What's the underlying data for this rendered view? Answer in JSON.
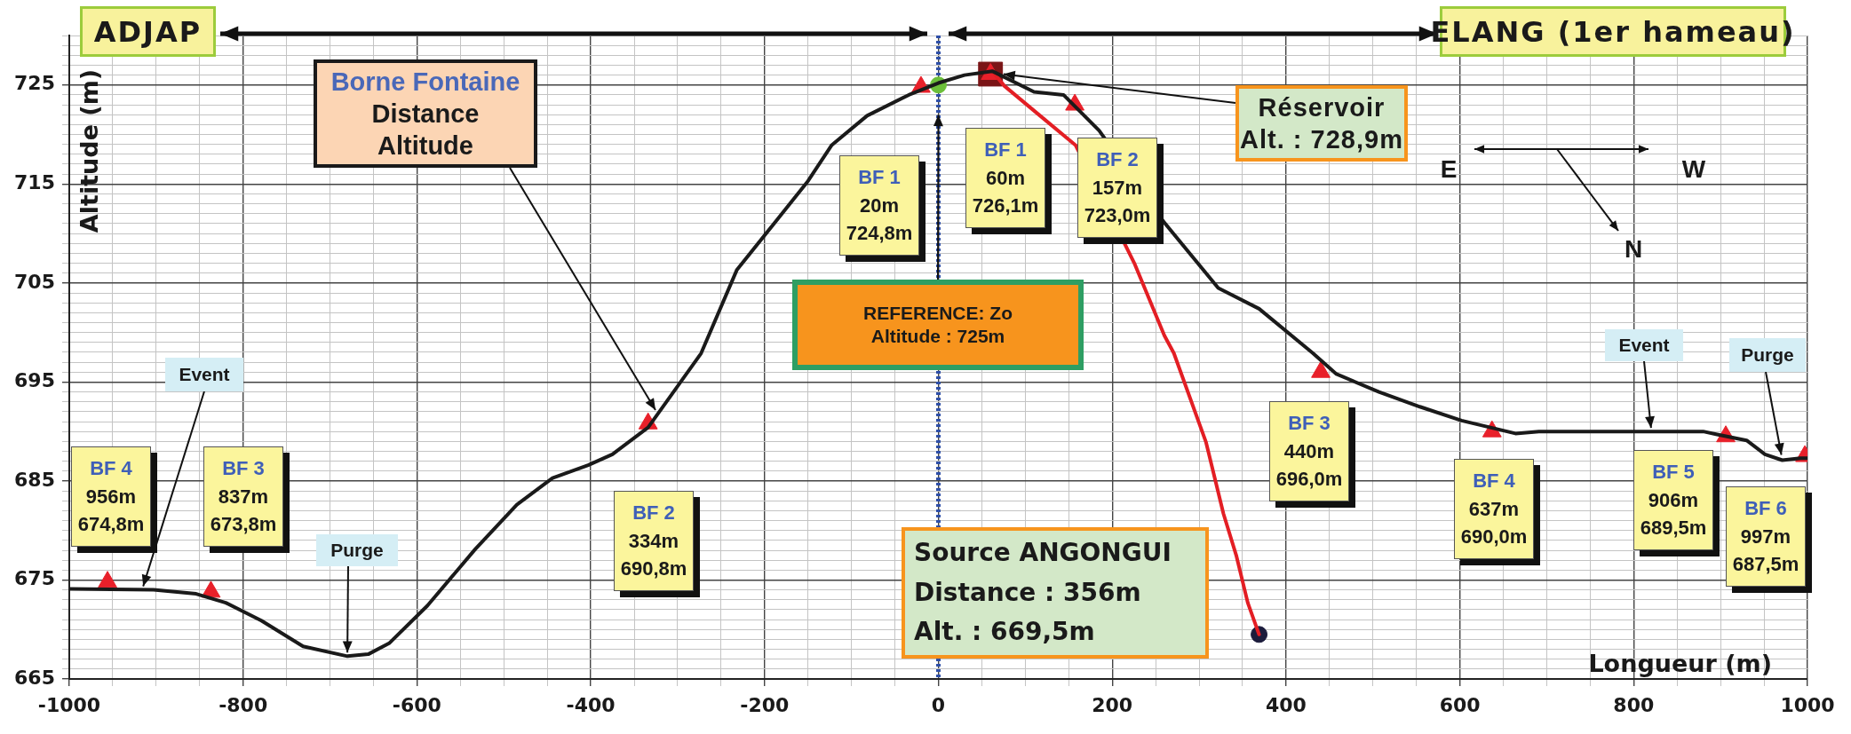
{
  "chart_data": {
    "type": "line",
    "xlabel": "Longueur (m)",
    "ylabel": "Altitude (m)",
    "xlim": [
      -1000,
      1000
    ],
    "xticks": [
      -1000,
      {
        "value": -950,
        "label": null
      },
      {
        "value": -900,
        "label": null
      },
      {
        "value": -850,
        "label": null
      },
      -800,
      {
        "value": -750,
        "label": null
      },
      {
        "value": -700,
        "label": null
      },
      {
        "value": -650,
        "label": null
      },
      -600,
      {
        "value": -550,
        "label": null
      },
      {
        "value": -500,
        "label": null
      },
      {
        "value": -450,
        "label": null
      },
      -400,
      {
        "value": -350,
        "label": null
      },
      {
        "value": -300,
        "label": null
      },
      {
        "value": -250,
        "label": null
      },
      -200,
      {
        "value": -150,
        "label": null
      },
      {
        "value": -100,
        "label": null
      },
      {
        "value": -50,
        "label": null
      },
      0,
      {
        "value": 50,
        "label": null
      },
      {
        "value": 100,
        "label": null
      },
      {
        "value": 150,
        "label": null
      },
      200,
      {
        "value": 250,
        "label": null
      },
      {
        "value": 300,
        "label": null
      },
      {
        "value": 350,
        "label": null
      },
      400,
      {
        "value": 450,
        "label": null
      },
      {
        "value": 500,
        "label": null
      },
      {
        "value": 550,
        "label": null
      },
      600,
      {
        "value": 650,
        "label": null
      },
      {
        "value": 700,
        "label": null
      },
      {
        "value": 750,
        "label": null
      },
      800,
      {
        "value": 850,
        "label": null
      },
      {
        "value": 900,
        "label": null
      },
      {
        "value": 950,
        "label": null
      },
      1000
    ],
    "ylim": [
      665,
      730
    ],
    "yticks": [
      665,
      {
        "value": 666,
        "label": null
      },
      {
        "value": 667,
        "label": null
      },
      {
        "value": 668,
        "label": null
      },
      {
        "value": 669,
        "label": null
      },
      {
        "value": 670,
        "label": null
      },
      {
        "value": 671,
        "label": null
      },
      {
        "value": 672,
        "label": null
      },
      {
        "value": 673,
        "label": null
      },
      {
        "value": 674,
        "label": null
      },
      675,
      {
        "value": 676,
        "label": null
      },
      {
        "value": 677,
        "label": null
      },
      {
        "value": 678,
        "label": null
      },
      {
        "value": 679,
        "label": null
      },
      {
        "value": 680,
        "label": null
      },
      {
        "value": 681,
        "label": null
      },
      {
        "value": 682,
        "label": null
      },
      {
        "value": 683,
        "label": null
      },
      {
        "value": 684,
        "label": null
      },
      685,
      {
        "value": 686,
        "label": null
      },
      {
        "value": 687,
        "label": null
      },
      {
        "value": 688,
        "label": null
      },
      {
        "value": 689,
        "label": null
      },
      {
        "value": 690,
        "label": null
      },
      {
        "value": 691,
        "label": null
      },
      {
        "value": 692,
        "label": null
      },
      {
        "value": 693,
        "label": null
      },
      {
        "value": 694,
        "label": null
      },
      695,
      {
        "value": 696,
        "label": null
      },
      {
        "value": 697,
        "label": null
      },
      {
        "value": 698,
        "label": null
      },
      {
        "value": 699,
        "label": null
      },
      {
        "value": 700,
        "label": null
      },
      {
        "value": 701,
        "label": null
      },
      {
        "value": 702,
        "label": null
      },
      {
        "value": 703,
        "label": null
      },
      {
        "value": 704,
        "label": null
      },
      705,
      {
        "value": 706,
        "label": null
      },
      {
        "value": 707,
        "label": null
      },
      {
        "value": 708,
        "label": null
      },
      {
        "value": 709,
        "label": null
      },
      {
        "value": 710,
        "label": null
      },
      {
        "value": 711,
        "label": null
      },
      {
        "value": 712,
        "label": null
      },
      {
        "value": 713,
        "label": null
      },
      {
        "value": 714,
        "label": null
      },
      715,
      {
        "value": 716,
        "label": null
      },
      {
        "value": 717,
        "label": null
      },
      {
        "value": 718,
        "label": null
      },
      {
        "value": 719,
        "label": null
      },
      {
        "value": 720,
        "label": null
      },
      {
        "value": 721,
        "label": null
      },
      {
        "value": 722,
        "label": null
      },
      {
        "value": 723,
        "label": null
      },
      {
        "value": 724,
        "label": null
      },
      725,
      {
        "value": 726,
        "label": null
      },
      {
        "value": 727,
        "label": null
      },
      {
        "value": 728,
        "label": null
      },
      {
        "value": 729,
        "label": null
      },
      {
        "value": 730,
        "label": null
      }
    ],
    "grid": true,
    "legend": false,
    "line_style": "solid",
    "ref_lines": [
      {
        "axis": "x",
        "value": 0,
        "color": "#2e4fa8",
        "line_style": "dotted"
      }
    ],
    "series": [
      {
        "color": "#1a1a1a",
        "marker": "none",
        "x": [
          -1000,
          -903,
          -854,
          -820,
          -779,
          -731,
          -680,
          -656,
          -632,
          -588,
          -533,
          -485,
          -444,
          -403,
          -375,
          -334,
          -273,
          -232,
          -191,
          -150,
          -123,
          -82,
          -34,
          0,
          30,
          62,
          110,
          144,
          185,
          260,
          322,
          369,
          431,
          458,
          507,
          554,
          602,
          664,
          691,
          880,
          896,
          930,
          951,
          971,
          992,
          1000
        ],
        "values": [
          674.1,
          674.0,
          673.6,
          672.7,
          670.9,
          668.3,
          667.3,
          667.5,
          668.6,
          672.4,
          678.1,
          682.6,
          685.3,
          686.6,
          687.7,
          690.4,
          697.9,
          706.3,
          710.8,
          715.3,
          718.9,
          721.9,
          724.0,
          725.2,
          726.0,
          726.4,
          724.3,
          724.0,
          720.4,
          711.1,
          704.5,
          702.4,
          697.9,
          695.8,
          694.0,
          692.5,
          691.1,
          689.8,
          690.0,
          690.0,
          689.7,
          689.1,
          687.7,
          687.1,
          687.3,
          687.3
        ]
      },
      {
        "color": "#e31e24",
        "marker": "none",
        "x": [
          62,
          76,
          117,
          158,
          226,
          260,
          271,
          308,
          328,
          343,
          356,
          369
        ],
        "values": [
          726.4,
          724.9,
          721.9,
          718.9,
          706.9,
          699.7,
          697.9,
          688.9,
          681.7,
          677.4,
          672.7,
          669.5
        ]
      },
      {
        "type": "scatter",
        "color": "#7a1416",
        "marker": "square",
        "x": [
          60
        ],
        "values": [
          726.1
        ]
      },
      {
        "type": "scatter",
        "color": "#e8202a",
        "marker": "triangle",
        "x": [
          -956,
          -837,
          -334,
          -20,
          60,
          157,
          440,
          637,
          906,
          997
        ],
        "values": [
          674.8,
          673.8,
          690.8,
          724.8,
          726.1,
          723.0,
          696.0,
          690.0,
          689.5,
          687.5
        ]
      },
      {
        "type": "scatter",
        "color": "#6cbf3a",
        "marker": "circle",
        "x": [
          0
        ],
        "values": [
          725
        ]
      },
      {
        "type": "scatter",
        "color": "#1c1c3c",
        "marker": "circle",
        "x": [
          369
        ],
        "values": [
          669.5
        ]
      }
    ],
    "annotations": [
      "ADJAP",
      "ELANG (1er hameau)",
      "Borne Fontaine\nDistance\nAltitude",
      "BF 4\n956m\n674,8m",
      "BF 3\n837m\n673,8m",
      "BF 2\n334m\n690,8m",
      "BF 1\n20m\n724,8m",
      "BF 1\n60m\n726,1m",
      "BF 2\n157m\n723,0m",
      "BF 3\n440m\n696,0m",
      "BF 4\n637m\n690,0m",
      "BF 5\n906m\n689,5m",
      "BF 6\n997m\n687,5m",
      {
        "text": "REFERENCE: Zo\nAltitude : 725m",
        "x": 0,
        "y": 722
      },
      {
        "text": "Réservoir\nAlt. : 728,9m",
        "x": 75,
        "y": 726.1
      },
      "Source ANGONGUI\nDistance : 356m\nAlt. : 669,5m",
      {
        "text": "Event",
        "x": -915,
        "y": 674.0
      },
      {
        "text": "Purge",
        "x": -680,
        "y": 667.3
      },
      {
        "text": "Event",
        "x": 820,
        "y": 690.0
      },
      {
        "text": "Purge",
        "x": 970,
        "y": 687.1
      },
      "E",
      "W",
      "N"
    ]
  }
}
